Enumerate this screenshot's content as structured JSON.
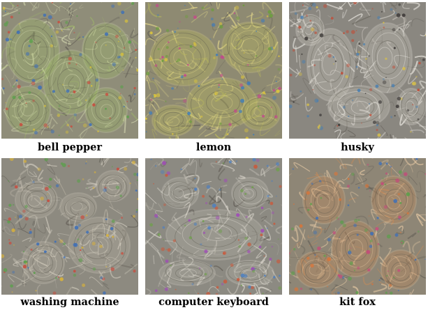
{
  "figure": {
    "panels": [
      {
        "label": "bell pepper",
        "palette": {
          "base": "#8f8d79",
          "accent": "#9fb86a",
          "hi": "#d9ddb4",
          "pop": [
            "#5aa04a",
            "#c94b3d",
            "#3d6fb8",
            "#d9c23a"
          ]
        }
      },
      {
        "label": "lemon",
        "palette": {
          "base": "#8e8a72",
          "accent": "#b9b85d",
          "hi": "#e3d78a",
          "pop": [
            "#e0c83a",
            "#6c9e3d",
            "#c24a8a",
            "#3b7bbd"
          ]
        }
      },
      {
        "label": "husky",
        "palette": {
          "base": "#8a8780",
          "accent": "#c8c4bb",
          "hi": "#f0ede6",
          "pop": [
            "#3d3a38",
            "#bf4f3a",
            "#4a7fb0",
            "#d8c04a"
          ]
        }
      },
      {
        "label": "washing machine",
        "palette": {
          "base": "#8d8a80",
          "accent": "#b4aea0",
          "hi": "#dcd6c8",
          "pop": [
            "#3d6fb8",
            "#c94b3d",
            "#5aa04a",
            "#d9b23a"
          ]
        }
      },
      {
        "label": "computer keyboard",
        "palette": {
          "base": "#8c8a82",
          "accent": "#b3b0a6",
          "hi": "#e2ded4",
          "pop": [
            "#4d7fc0",
            "#c95a3d",
            "#6ea04a",
            "#a04ab8"
          ]
        }
      },
      {
        "label": "kit fox",
        "palette": {
          "base": "#8e8676",
          "accent": "#c48a5a",
          "hi": "#e6c9a4",
          "pop": [
            "#d8753a",
            "#3d6fb8",
            "#5aa04a",
            "#c44a7a"
          ]
        }
      }
    ]
  }
}
